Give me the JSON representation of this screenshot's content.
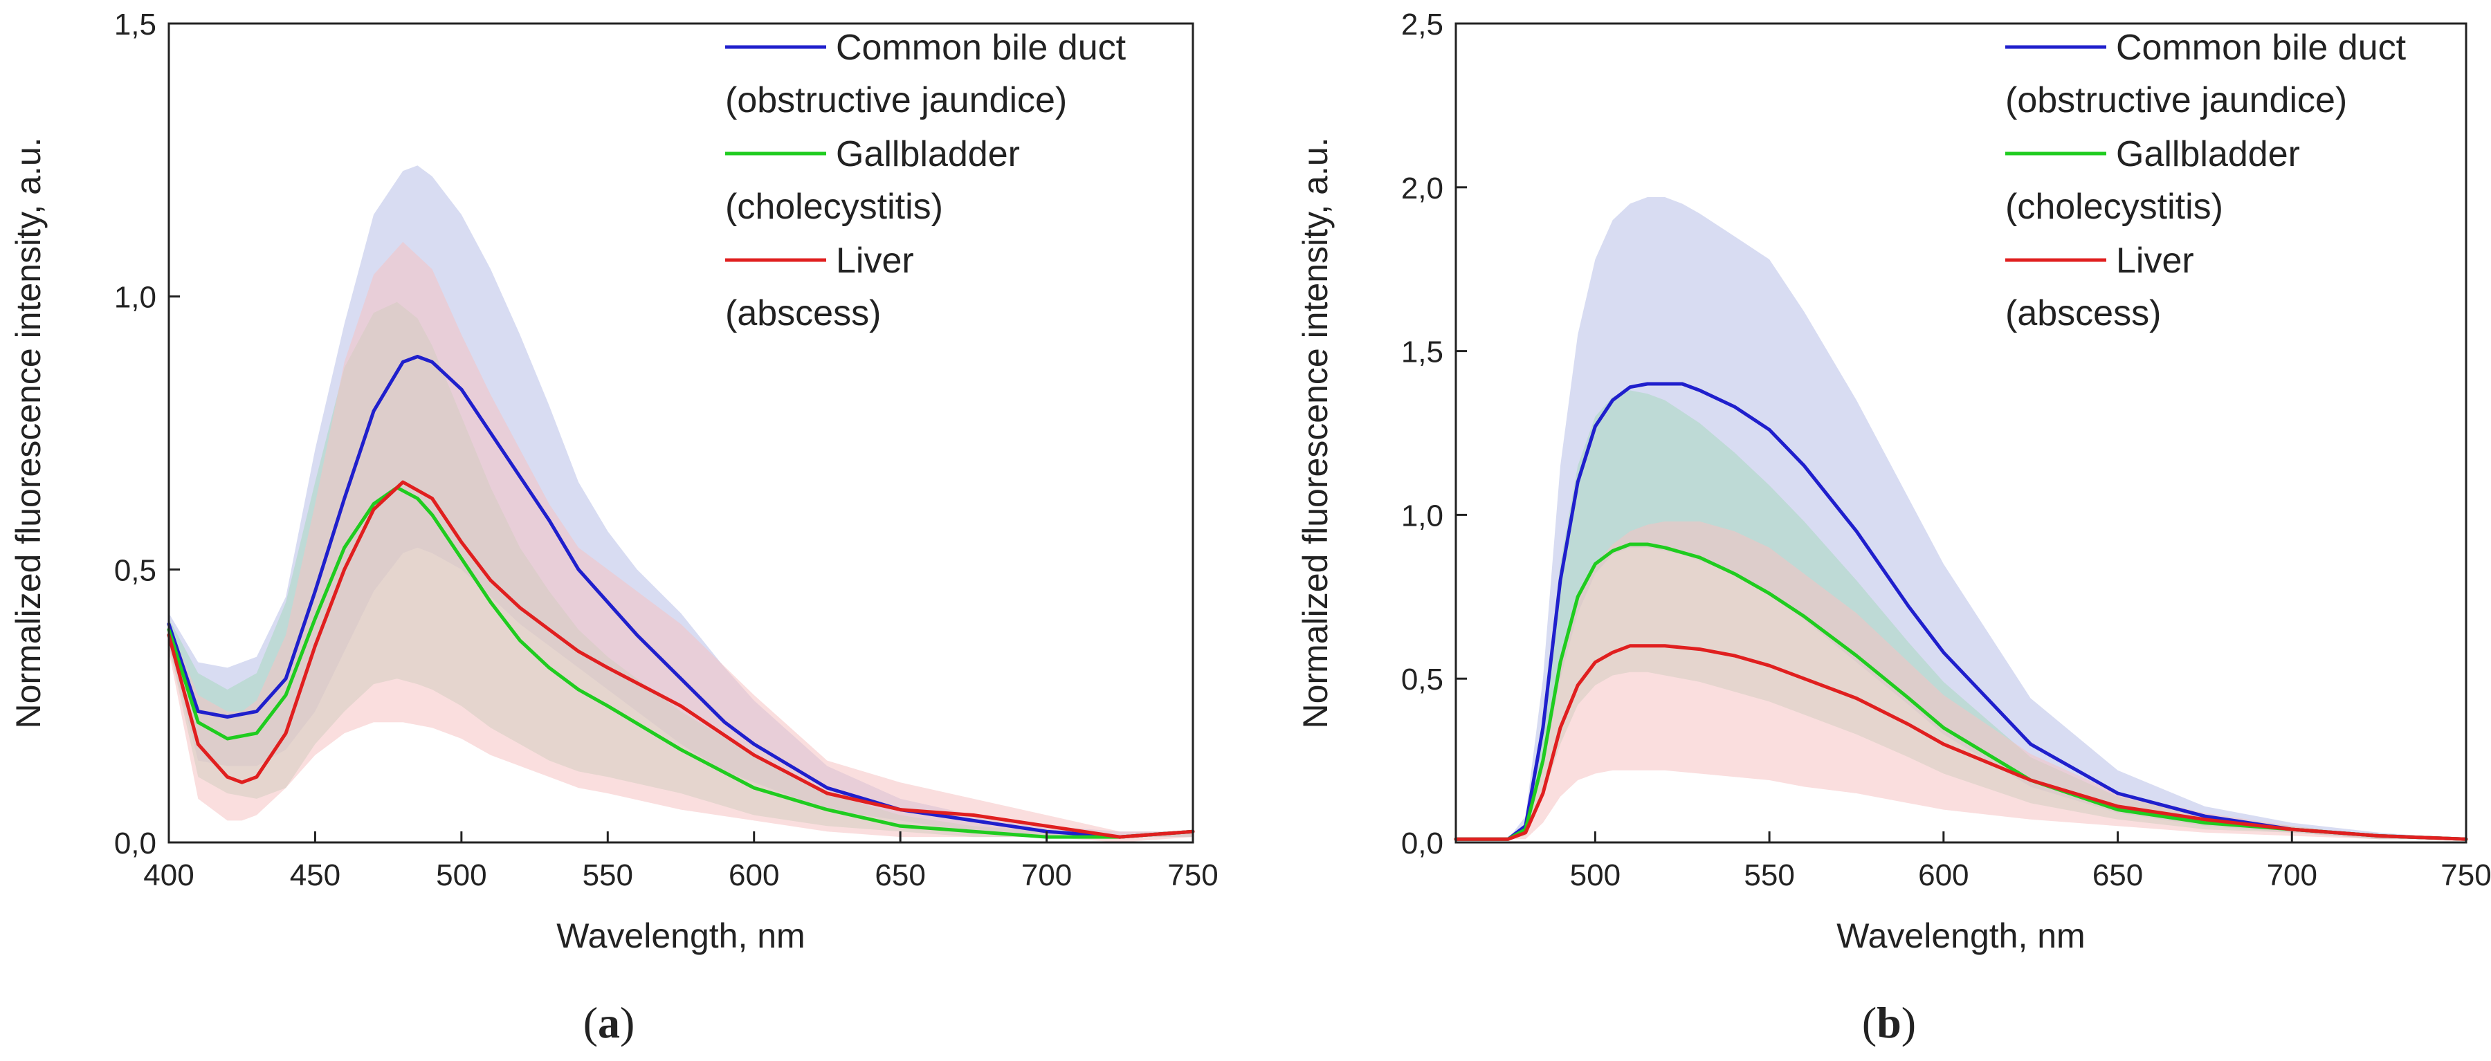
{
  "chart_data": [
    {
      "type": "line",
      "panel_label": "a",
      "xlabel": "Wavelength, nm",
      "ylabel": "Normalized fluorescence intensity, a.u.",
      "xlim": [
        400,
        750
      ],
      "ylim": [
        0,
        1.5
      ],
      "xticks": [
        "400",
        "450",
        "500",
        "550",
        "600",
        "650",
        "700",
        "750"
      ],
      "xtick_values": [
        400,
        450,
        500,
        550,
        600,
        650,
        700,
        750
      ],
      "yticks": [
        "0,0",
        "0,5",
        "1,0",
        "1,5"
      ],
      "ytick_values": [
        0,
        0.5,
        1.0,
        1.5
      ],
      "grid": false,
      "legend_position": "top-right",
      "legend": [
        {
          "lines": [
            "Common bile duct",
            "(obstructive jaundice)"
          ],
          "color": "#1f1fcc"
        },
        {
          "lines": [
            "Gallbladder",
            "(cholecystitis)"
          ],
          "color": "#1fcc1f"
        },
        {
          "lines": [
            "Liver",
            "(abscess)"
          ],
          "color": "#e01f1f"
        }
      ],
      "series": [
        {
          "color": "#1f1fcc",
          "band_color": "#b8bfe8",
          "x": [
            400,
            410,
            420,
            430,
            440,
            450,
            460,
            470,
            480,
            485,
            490,
            500,
            510,
            520,
            530,
            540,
            550,
            560,
            575,
            590,
            600,
            625,
            650,
            675,
            700,
            725,
            750
          ],
          "y": [
            0.4,
            0.24,
            0.23,
            0.24,
            0.3,
            0.46,
            0.63,
            0.79,
            0.88,
            0.89,
            0.88,
            0.83,
            0.75,
            0.67,
            0.59,
            0.5,
            0.44,
            0.38,
            0.3,
            0.22,
            0.18,
            0.1,
            0.06,
            0.04,
            0.02,
            0.01,
            0.02
          ],
          "upper": [
            0.42,
            0.33,
            0.32,
            0.34,
            0.45,
            0.72,
            0.95,
            1.15,
            1.23,
            1.24,
            1.22,
            1.15,
            1.05,
            0.93,
            0.8,
            0.66,
            0.57,
            0.5,
            0.42,
            0.32,
            0.26,
            0.14,
            0.08,
            0.05,
            0.03,
            0.02,
            0.02
          ],
          "lower": [
            0.36,
            0.15,
            0.14,
            0.14,
            0.17,
            0.24,
            0.35,
            0.46,
            0.53,
            0.54,
            0.53,
            0.5,
            0.45,
            0.4,
            0.36,
            0.32,
            0.28,
            0.24,
            0.18,
            0.13,
            0.11,
            0.06,
            0.04,
            0.02,
            0.01,
            0.01,
            0.01
          ]
        },
        {
          "color": "#1fcc1f",
          "band_color": "#a9d9c0",
          "x": [
            400,
            410,
            420,
            430,
            440,
            450,
            460,
            470,
            478,
            485,
            490,
            500,
            510,
            520,
            530,
            540,
            550,
            575,
            600,
            625,
            650,
            675,
            700,
            725,
            750
          ],
          "y": [
            0.39,
            0.22,
            0.19,
            0.2,
            0.27,
            0.41,
            0.54,
            0.62,
            0.65,
            0.63,
            0.6,
            0.52,
            0.44,
            0.37,
            0.32,
            0.28,
            0.25,
            0.17,
            0.1,
            0.06,
            0.03,
            0.02,
            0.01,
            0.01,
            0.02
          ],
          "upper": [
            0.41,
            0.31,
            0.28,
            0.31,
            0.44,
            0.66,
            0.87,
            0.97,
            0.99,
            0.96,
            0.91,
            0.78,
            0.65,
            0.54,
            0.46,
            0.39,
            0.34,
            0.24,
            0.16,
            0.09,
            0.05,
            0.03,
            0.02,
            0.01,
            0.02
          ],
          "lower": [
            0.36,
            0.12,
            0.09,
            0.08,
            0.1,
            0.18,
            0.24,
            0.29,
            0.3,
            0.29,
            0.28,
            0.25,
            0.21,
            0.18,
            0.15,
            0.13,
            0.12,
            0.09,
            0.05,
            0.03,
            0.02,
            0.01,
            0.01,
            0.01,
            0.01
          ]
        },
        {
          "color": "#e01f1f",
          "band_color": "#f6c3c3",
          "x": [
            400,
            410,
            420,
            425,
            430,
            440,
            450,
            460,
            470,
            480,
            490,
            500,
            510,
            520,
            530,
            540,
            550,
            575,
            600,
            625,
            650,
            675,
            700,
            725,
            750
          ],
          "y": [
            0.38,
            0.18,
            0.12,
            0.11,
            0.12,
            0.2,
            0.36,
            0.5,
            0.61,
            0.66,
            0.63,
            0.55,
            0.48,
            0.43,
            0.39,
            0.35,
            0.32,
            0.25,
            0.16,
            0.09,
            0.06,
            0.05,
            0.03,
            0.01,
            0.02
          ],
          "upper": [
            0.4,
            0.27,
            0.24,
            0.24,
            0.26,
            0.38,
            0.62,
            0.88,
            1.04,
            1.1,
            1.05,
            0.93,
            0.82,
            0.72,
            0.62,
            0.54,
            0.5,
            0.4,
            0.27,
            0.15,
            0.11,
            0.08,
            0.05,
            0.02,
            0.02
          ],
          "lower": [
            0.35,
            0.08,
            0.04,
            0.04,
            0.05,
            0.1,
            0.16,
            0.2,
            0.22,
            0.22,
            0.21,
            0.19,
            0.16,
            0.14,
            0.12,
            0.1,
            0.09,
            0.06,
            0.04,
            0.02,
            0.01,
            0.01,
            0.01,
            0.0,
            0.01
          ]
        }
      ]
    },
    {
      "type": "line",
      "panel_label": "b",
      "xlabel": "Wavelength, nm",
      "ylabel": "Normalized fluorescence intensity, a.u.",
      "xlim": [
        460,
        750
      ],
      "ylim": [
        0,
        2.5
      ],
      "xticks": [
        "500",
        "550",
        "600",
        "650",
        "700",
        "750"
      ],
      "xtick_values": [
        500,
        550,
        600,
        650,
        700,
        750
      ],
      "yticks": [
        "0,0",
        "0,5",
        "1,0",
        "1,5",
        "2,0",
        "2,5"
      ],
      "ytick_values": [
        0,
        0.5,
        1.0,
        1.5,
        2.0,
        2.5
      ],
      "grid": false,
      "legend_position": "top-right",
      "legend": [
        {
          "lines": [
            "Common bile duct",
            "(obstructive jaundice)"
          ],
          "color": "#1f1fcc"
        },
        {
          "lines": [
            "Gallbladder",
            "(cholecystitis)"
          ],
          "color": "#1fcc1f"
        },
        {
          "lines": [
            "Liver",
            "(abscess)"
          ],
          "color": "#e01f1f"
        }
      ],
      "series": [
        {
          "color": "#1f1fcc",
          "band_color": "#b8bfe8",
          "x": [
            460,
            470,
            475,
            480,
            485,
            490,
            495,
            500,
            505,
            510,
            515,
            520,
            525,
            530,
            540,
            550,
            560,
            575,
            590,
            600,
            625,
            650,
            675,
            700,
            725,
            750
          ],
          "y": [
            0.01,
            0.01,
            0.01,
            0.05,
            0.35,
            0.8,
            1.1,
            1.27,
            1.35,
            1.39,
            1.4,
            1.4,
            1.4,
            1.38,
            1.33,
            1.26,
            1.15,
            0.95,
            0.72,
            0.58,
            0.3,
            0.15,
            0.08,
            0.04,
            0.02,
            0.01
          ],
          "upper": [
            0.01,
            0.01,
            0.01,
            0.08,
            0.5,
            1.15,
            1.55,
            1.78,
            1.9,
            1.95,
            1.97,
            1.97,
            1.95,
            1.92,
            1.85,
            1.78,
            1.62,
            1.35,
            1.05,
            0.85,
            0.44,
            0.22,
            0.11,
            0.06,
            0.03,
            0.01
          ],
          "lower": [
            0.01,
            0.01,
            0.01,
            0.03,
            0.22,
            0.5,
            0.7,
            0.82,
            0.88,
            0.9,
            0.9,
            0.89,
            0.88,
            0.86,
            0.82,
            0.76,
            0.68,
            0.55,
            0.42,
            0.33,
            0.17,
            0.09,
            0.05,
            0.03,
            0.01,
            0.01
          ]
        },
        {
          "color": "#1fcc1f",
          "band_color": "#a9d9c0",
          "x": [
            460,
            470,
            475,
            480,
            485,
            490,
            495,
            500,
            505,
            510,
            515,
            520,
            530,
            540,
            550,
            560,
            575,
            590,
            600,
            625,
            650,
            675,
            700,
            725,
            750
          ],
          "y": [
            0.01,
            0.01,
            0.01,
            0.04,
            0.25,
            0.55,
            0.75,
            0.85,
            0.89,
            0.91,
            0.91,
            0.9,
            0.87,
            0.82,
            0.76,
            0.69,
            0.57,
            0.44,
            0.35,
            0.19,
            0.1,
            0.06,
            0.04,
            0.02,
            0.01
          ],
          "upper": [
            0.01,
            0.01,
            0.01,
            0.06,
            0.38,
            0.85,
            1.15,
            1.3,
            1.36,
            1.38,
            1.37,
            1.35,
            1.28,
            1.19,
            1.09,
            0.98,
            0.8,
            0.61,
            0.49,
            0.26,
            0.14,
            0.08,
            0.05,
            0.02,
            0.01
          ],
          "lower": [
            0.01,
            0.01,
            0.01,
            0.02,
            0.14,
            0.3,
            0.42,
            0.48,
            0.51,
            0.52,
            0.52,
            0.51,
            0.49,
            0.46,
            0.43,
            0.39,
            0.33,
            0.26,
            0.21,
            0.12,
            0.07,
            0.04,
            0.03,
            0.01,
            0.01
          ]
        },
        {
          "color": "#e01f1f",
          "band_color": "#f6c3c3",
          "x": [
            460,
            470,
            475,
            480,
            485,
            490,
            495,
            500,
            505,
            510,
            515,
            520,
            530,
            540,
            550,
            560,
            575,
            590,
            600,
            625,
            650,
            675,
            700,
            725,
            750
          ],
          "y": [
            0.01,
            0.01,
            0.01,
            0.03,
            0.15,
            0.35,
            0.48,
            0.55,
            0.58,
            0.6,
            0.6,
            0.6,
            0.59,
            0.57,
            0.54,
            0.5,
            0.44,
            0.36,
            0.3,
            0.19,
            0.11,
            0.07,
            0.04,
            0.02,
            0.01
          ],
          "upper": [
            0.01,
            0.01,
            0.01,
            0.05,
            0.25,
            0.55,
            0.74,
            0.85,
            0.91,
            0.95,
            0.97,
            0.98,
            0.98,
            0.95,
            0.9,
            0.82,
            0.7,
            0.55,
            0.45,
            0.27,
            0.15,
            0.09,
            0.05,
            0.02,
            0.01
          ],
          "lower": [
            0.01,
            0.01,
            0.01,
            0.01,
            0.06,
            0.14,
            0.19,
            0.21,
            0.22,
            0.22,
            0.22,
            0.22,
            0.21,
            0.2,
            0.19,
            0.17,
            0.15,
            0.12,
            0.1,
            0.07,
            0.05,
            0.03,
            0.02,
            0.01,
            0.01
          ]
        }
      ]
    }
  ]
}
